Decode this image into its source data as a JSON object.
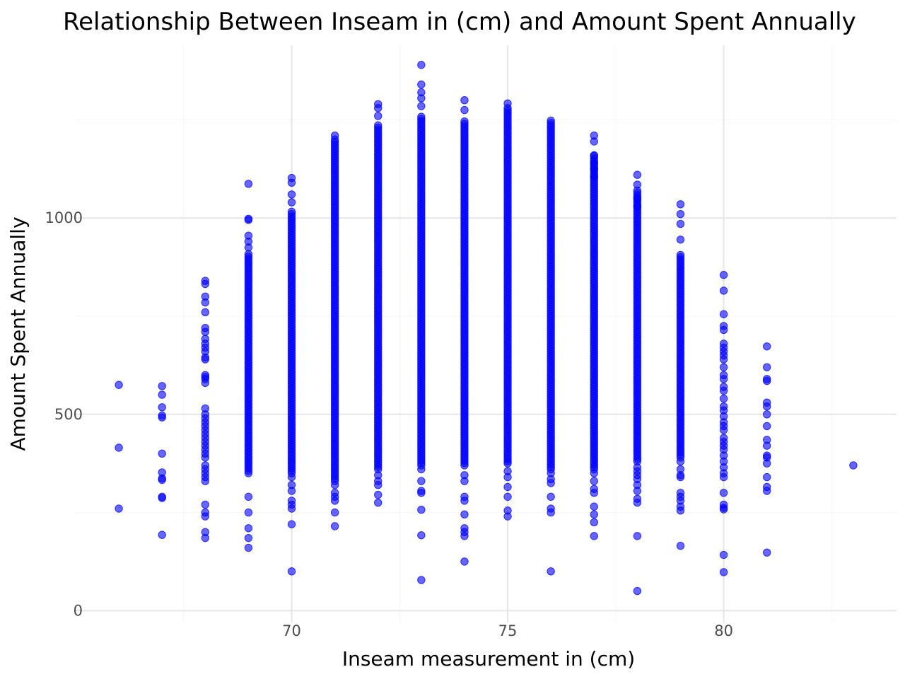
{
  "chart_data": {
    "type": "scatter",
    "title": "Relationship Between Inseam in (cm) and Amount Spent Annually",
    "xlabel": "Inseam measurement in (cm)",
    "ylabel": "Amount Spent Annually",
    "xlim": [
      65,
      84
    ],
    "ylim": [
      -30,
      1440
    ],
    "x_ticks": [
      70,
      75,
      80
    ],
    "x_tick_labels": [
      "70",
      "75",
      "80"
    ],
    "y_ticks": [
      0,
      500,
      1000
    ],
    "y_tick_labels": [
      "0",
      "500",
      "1000"
    ],
    "grid": true,
    "point_color": "#0000ff",
    "point_opacity": 0.6,
    "columns": [
      {
        "x": 66,
        "band": null,
        "points": [
          575,
          415,
          260
        ]
      },
      {
        "x": 67,
        "band": null,
        "points": [
          572,
          550,
          518,
          497,
          492,
          400,
          352,
          337,
          333,
          290,
          287,
          193
        ]
      },
      {
        "x": 68,
        "band": null,
        "points": [
          840,
          832,
          800,
          785,
          760,
          720,
          710,
          692,
          680,
          670,
          660,
          645,
          640,
          600,
          595,
          590,
          580,
          515,
          500,
          490,
          480,
          470,
          460,
          450,
          440,
          430,
          420,
          410,
          400,
          390,
          370,
          360,
          350,
          340,
          330,
          270,
          250,
          240,
          200,
          185
        ]
      },
      {
        "x": 69,
        "band": [
          350,
          910
        ],
        "points": [
          1087,
          998,
          995,
          955,
          940,
          925,
          290,
          250,
          210,
          185,
          160
        ]
      },
      {
        "x": 70,
        "band": [
          350,
          1020
        ],
        "points": [
          1102,
          1090,
          1060,
          1040,
          340,
          320,
          305,
          280,
          270,
          260,
          220,
          100
        ]
      },
      {
        "x": 71,
        "band": [
          330,
          1200
        ],
        "points": [
          1210,
          320,
          300,
          290,
          280,
          250,
          215
        ]
      },
      {
        "x": 72,
        "band": [
          360,
          1240
        ],
        "points": [
          1290,
          1280,
          1260,
          345,
          330,
          320,
          295,
          275
        ]
      },
      {
        "x": 73,
        "band": [
          370,
          1260
        ],
        "points": [
          1390,
          1340,
          1320,
          1305,
          1285,
          360,
          330,
          305,
          300,
          257,
          192,
          78
        ]
      },
      {
        "x": 74,
        "band": [
          370,
          1250
        ],
        "points": [
          1300,
          1275,
          345,
          330,
          290,
          280,
          245,
          210,
          200,
          190,
          125
        ]
      },
      {
        "x": 75,
        "band": [
          380,
          1280
        ],
        "points": [
          1292,
          375,
          355,
          340,
          315,
          290,
          255,
          240
        ]
      },
      {
        "x": 76,
        "band": [
          360,
          1250
        ],
        "points": [
          350,
          335,
          325,
          290,
          260,
          250,
          100
        ]
      },
      {
        "x": 77,
        "band": [
          360,
          1160
        ],
        "points": [
          1210,
          1195,
          1160,
          1140,
          1125,
          1105,
          350,
          330,
          310,
          300,
          265,
          245,
          225,
          190
        ]
      },
      {
        "x": 78,
        "band": [
          380,
          1070
        ],
        "points": [
          1110,
          1085,
          1050,
          1030,
          365,
          355,
          345,
          335,
          320,
          305,
          285,
          275,
          190,
          50
        ]
      },
      {
        "x": 79,
        "band": [
          390,
          910
        ],
        "points": [
          1035,
          1010,
          985,
          945,
          380,
          360,
          345,
          340,
          300,
          290,
          280,
          265,
          255,
          165
        ]
      },
      {
        "x": 80,
        "band": null,
        "points": [
          855,
          815,
          755,
          725,
          715,
          680,
          670,
          660,
          650,
          640,
          620,
          600,
          590,
          570,
          560,
          540,
          520,
          510,
          495,
          480,
          470,
          460,
          440,
          430,
          420,
          410,
          395,
          380,
          365,
          350,
          340,
          300,
          270,
          262,
          258,
          142,
          98
        ]
      },
      {
        "x": 81,
        "band": null,
        "points": [
          673,
          620,
          590,
          585,
          530,
          520,
          500,
          470,
          435,
          420,
          395,
          390,
          375,
          340,
          315,
          305,
          148
        ]
      },
      {
        "x": 83,
        "band": null,
        "points": [
          370
        ]
      }
    ]
  }
}
